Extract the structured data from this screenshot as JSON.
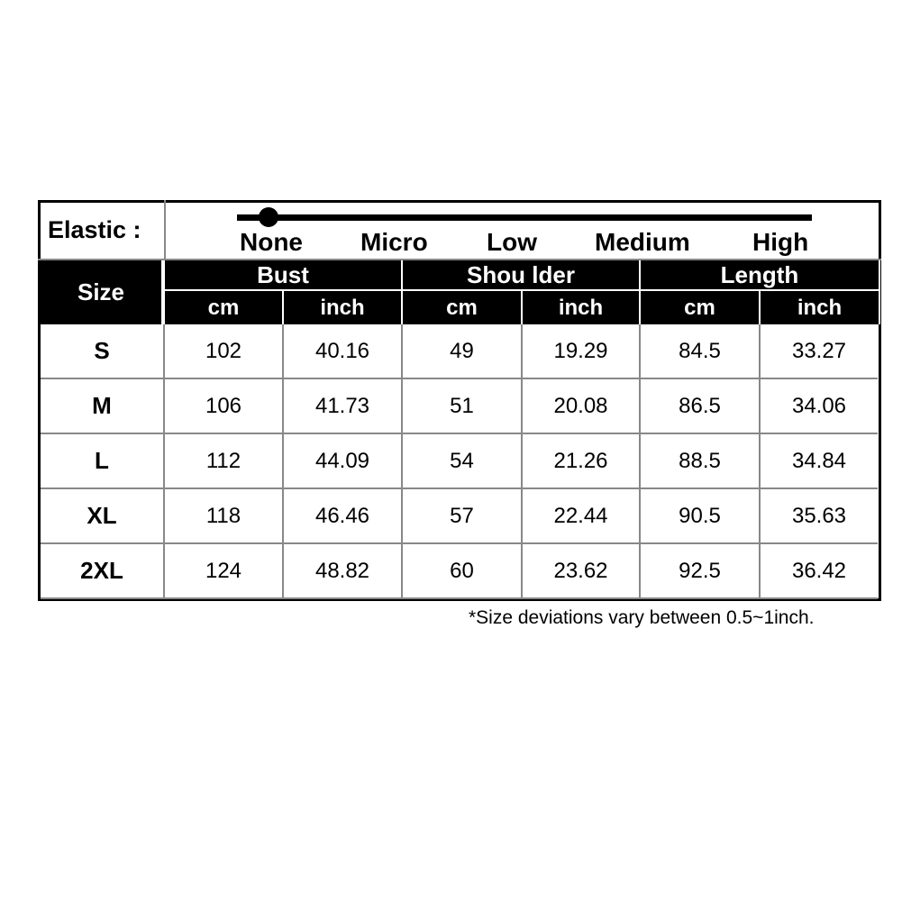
{
  "elastic": {
    "label": "Elastic :",
    "levels": [
      "None",
      "Micro",
      "Low",
      "Medium",
      "High"
    ],
    "selected": "None"
  },
  "header": {
    "size": "Size",
    "groups": [
      "Bust",
      "Shou lder",
      "Length"
    ],
    "units": [
      "cm",
      "inch",
      "cm",
      "inch",
      "cm",
      "inch"
    ]
  },
  "rows": [
    {
      "size": "S",
      "values": [
        "102",
        "40.16",
        "49",
        "19.29",
        "84.5",
        "33.27"
      ]
    },
    {
      "size": "M",
      "values": [
        "106",
        "41.73",
        "51",
        "20.08",
        "86.5",
        "34.06"
      ]
    },
    {
      "size": "L",
      "values": [
        "112",
        "44.09",
        "54",
        "21.26",
        "88.5",
        "34.84"
      ]
    },
    {
      "size": "XL",
      "values": [
        "118",
        "46.46",
        "57",
        "22.44",
        "90.5",
        "35.63"
      ]
    },
    {
      "size": "2XL",
      "values": [
        "124",
        "48.82",
        "60",
        "23.62",
        "92.5",
        "36.42"
      ]
    }
  ],
  "note": "*Size deviations vary between 0.5~1inch."
}
